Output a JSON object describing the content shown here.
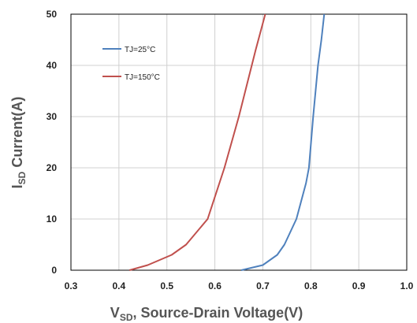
{
  "chart_data": {
    "type": "line",
    "title": "",
    "xlabel": {
      "main": "V",
      "sub": "SD",
      "rest": ", Source-Drain Voltage(V)"
    },
    "ylabel": {
      "main": "I",
      "sub": "SD",
      "rest": " Current(A)"
    },
    "xlim": [
      0.3,
      1.0
    ],
    "ylim": [
      0,
      50
    ],
    "xticks": [
      "0.3",
      "0.4",
      "0.5",
      "0.6",
      "0.7",
      "0.8",
      "0.9",
      "1.0"
    ],
    "yticks": [
      "0",
      "10",
      "20",
      "30",
      "40",
      "50"
    ],
    "grid": true,
    "legend": "top-left",
    "series": [
      {
        "name": "TJ=25°C",
        "color": "#4f81bd",
        "points": [
          [
            0.655,
            0
          ],
          [
            0.7,
            1
          ],
          [
            0.73,
            3
          ],
          [
            0.745,
            5
          ],
          [
            0.755,
            7
          ],
          [
            0.77,
            10
          ],
          [
            0.79,
            17
          ],
          [
            0.796,
            20
          ],
          [
            0.805,
            30
          ],
          [
            0.815,
            40
          ],
          [
            0.822,
            45
          ],
          [
            0.828,
            50
          ]
        ]
      },
      {
        "name": "TJ=150°C",
        "color": "#c0504d",
        "points": [
          [
            0.422,
            0
          ],
          [
            0.46,
            1
          ],
          [
            0.51,
            3
          ],
          [
            0.54,
            5
          ],
          [
            0.585,
            10
          ],
          [
            0.62,
            20
          ],
          [
            0.65,
            30
          ],
          [
            0.685,
            43
          ],
          [
            0.705,
            50
          ]
        ]
      }
    ]
  }
}
